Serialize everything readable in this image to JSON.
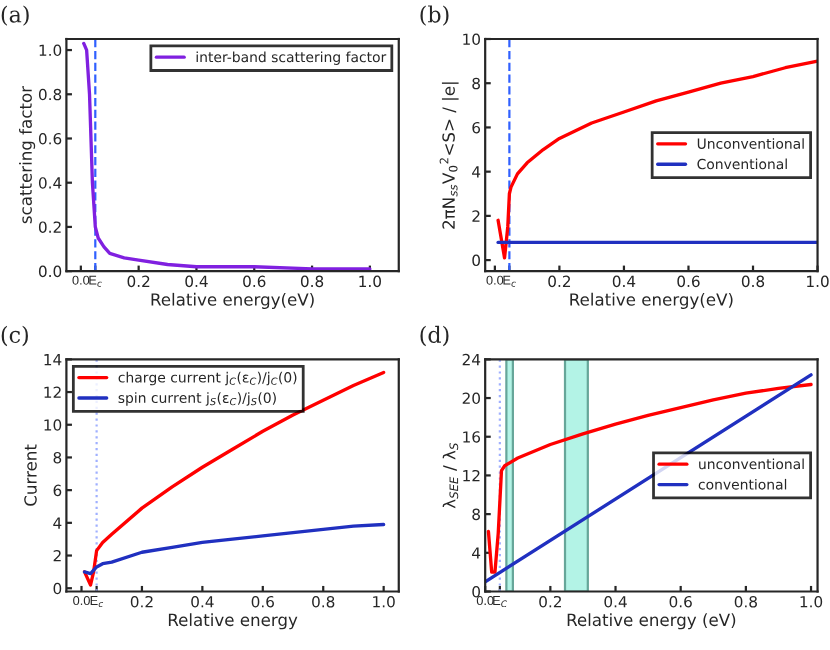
{
  "chart_data": [
    {
      "type": "line",
      "title": "(a)",
      "xlabel": "Relative energy(eV)",
      "ylabel": "scattering factor",
      "xlim": [
        -0.05,
        1.1
      ],
      "ylim": [
        0,
        1.05
      ],
      "xticks": [
        {
          "value": 0,
          "label": "0.0"
        },
        {
          "value": 0.05,
          "label": "E$_{c}$"
        },
        0.2,
        0.4,
        0.6,
        0.8,
        {
          "value": 1,
          "label": "1.0"
        }
      ],
      "yticks": [
        {
          "value": 0,
          "label": "0.0"
        },
        0.2,
        0.4,
        0.6,
        0.8,
        {
          "value": 1,
          "label": "1.0"
        }
      ],
      "legend": "top right",
      "grid": false,
      "ref_lines": [
        {
          "axis": "x",
          "value": 0.05,
          "color": "#3060ff",
          "line_style": "dashed"
        }
      ],
      "series": [
        {
          "name": "inter-band scattering factor",
          "color": "#8020e0",
          "x": [
            0.01,
            0.02,
            0.03,
            0.04,
            0.05,
            0.06,
            0.08,
            0.1,
            0.15,
            0.2,
            0.3,
            0.4,
            0.6,
            0.8,
            1.0
          ],
          "values": [
            1.03,
            1.0,
            0.8,
            0.4,
            0.2,
            0.15,
            0.11,
            0.08,
            0.06,
            0.05,
            0.03,
            0.02,
            0.02,
            0.01,
            0.01
          ]
        }
      ]
    },
    {
      "type": "line",
      "title": "(b)",
      "xlabel": "Relative energy(eV)",
      "ylabel": "2πN$_{ss}$V$_{0}$$^{2}$<S> / |e|",
      "xlim": [
        -0.03,
        1.0
      ],
      "ylim": [
        -0.5,
        10
      ],
      "xticks": [
        {
          "value": 0,
          "label": "0.0"
        },
        {
          "value": 0.045,
          "label": "E$_{c}$"
        },
        0.2,
        0.4,
        0.6,
        0.8,
        {
          "value": 1,
          "label": "1.0"
        }
      ],
      "yticks": [
        0,
        2,
        4,
        6,
        8,
        10
      ],
      "legend": "right",
      "grid": false,
      "ref_lines": [
        {
          "axis": "x",
          "value": 0.045,
          "color": "#3060ff",
          "line_style": "dashed"
        }
      ],
      "series": [
        {
          "name": "Unconventional",
          "color": "#ff0000",
          "x": [
            0.01,
            0.03,
            0.04,
            0.045,
            0.05,
            0.07,
            0.1,
            0.15,
            0.2,
            0.3,
            0.4,
            0.5,
            0.6,
            0.7,
            0.8,
            0.9,
            1.0
          ],
          "values": [
            1.8,
            0.1,
            1.5,
            3.0,
            3.3,
            3.9,
            4.4,
            5.0,
            5.5,
            6.2,
            6.7,
            7.2,
            7.6,
            8.0,
            8.3,
            8.7,
            9.0
          ]
        },
        {
          "name": "Conventional",
          "color": "#2030c0",
          "x": [
            0.01,
            1.0
          ],
          "values": [
            0.8,
            0.8
          ]
        }
      ]
    },
    {
      "type": "line",
      "title": "(c)",
      "xlabel": "Relative energy",
      "ylabel": "Current",
      "xlim": [
        -0.05,
        1.05
      ],
      "ylim": [
        -0.2,
        14
      ],
      "xticks": [
        {
          "value": 0,
          "label": "0.0"
        },
        {
          "value": 0.05,
          "label": "E$_{c}$"
        },
        0.2,
        0.4,
        0.6,
        0.8,
        {
          "value": 1,
          "label": "1.0"
        }
      ],
      "yticks": [
        0,
        2,
        4,
        6,
        8,
        10,
        12,
        14
      ],
      "legend": "top left",
      "grid": false,
      "ref_lines": [
        {
          "axis": "x",
          "value": 0.05,
          "color": "#a0b0ff",
          "line_style": "dotted"
        }
      ],
      "series": [
        {
          "name": "charge current j$_{C}$(ε$_{C}$)/j$_{C}$(0)",
          "color": "#ff0000",
          "x": [
            0.01,
            0.03,
            0.04,
            0.05,
            0.07,
            0.1,
            0.2,
            0.3,
            0.4,
            0.5,
            0.6,
            0.7,
            0.8,
            0.9,
            1.0
          ],
          "values": [
            1.0,
            0.2,
            1.0,
            2.3,
            2.8,
            3.3,
            4.9,
            6.2,
            7.4,
            8.5,
            9.6,
            10.6,
            11.5,
            12.4,
            13.2
          ]
        },
        {
          "name": "spin current j$_{S}$(ε$_{C}$)/j$_{S}$(0)",
          "color": "#2030c0",
          "x": [
            0.01,
            0.03,
            0.04,
            0.05,
            0.07,
            0.1,
            0.2,
            0.3,
            0.4,
            0.5,
            0.6,
            0.7,
            0.8,
            0.9,
            1.0
          ],
          "values": [
            1.0,
            0.9,
            1.1,
            1.3,
            1.5,
            1.6,
            2.2,
            2.5,
            2.8,
            3.0,
            3.2,
            3.4,
            3.6,
            3.8,
            3.9
          ]
        }
      ]
    },
    {
      "type": "line",
      "title": "(d)",
      "xlabel": "Relative energy (eV)",
      "ylabel": "λ$_{SEE}$ / λ$_{S}$",
      "xlim": [
        0,
        1.02
      ],
      "ylim": [
        0,
        24
      ],
      "xticks": [
        {
          "value": 0,
          "label": "0.0"
        },
        {
          "value": 0.045,
          "label": "E$_{C}$"
        },
        0.2,
        0.4,
        0.6,
        0.8,
        {
          "value": 1,
          "label": "1.0"
        }
      ],
      "yticks": [
        0,
        4,
        8,
        12,
        16,
        20,
        24
      ],
      "legend": "right",
      "grid": false,
      "ref_lines": [
        {
          "axis": "x",
          "value": 0.045,
          "color": "#a0b0ff",
          "line_style": "dotted"
        }
      ],
      "bands": [
        {
          "axis": "x",
          "from": 0.065,
          "to": 0.085,
          "color": "#a0f0e0"
        },
        {
          "axis": "x",
          "from": 0.245,
          "to": 0.315,
          "color": "#a0f0e0"
        }
      ],
      "series": [
        {
          "name": "unconventional",
          "color": "#ff0000",
          "x": [
            0.01,
            0.02,
            0.03,
            0.04,
            0.05,
            0.06,
            0.1,
            0.2,
            0.3,
            0.4,
            0.5,
            0.6,
            0.7,
            0.8,
            0.9,
            1.0
          ],
          "values": [
            6.2,
            2,
            2,
            6,
            12.5,
            13,
            13.8,
            15.2,
            16.3,
            17.3,
            18.2,
            19,
            19.8,
            20.5,
            21.0,
            21.4
          ]
        },
        {
          "name": "conventional",
          "color": "#2030c0",
          "x": [
            0.0,
            1.0
          ],
          "values": [
            1.0,
            22.4
          ]
        }
      ]
    }
  ]
}
